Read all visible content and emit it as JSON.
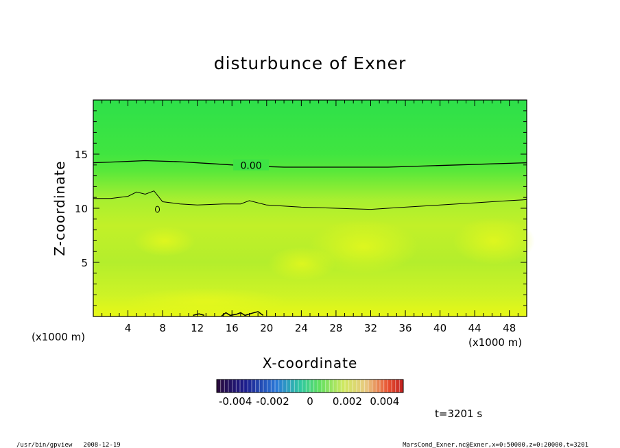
{
  "chart_data": {
    "type": "heatmap",
    "title": "disturbunce of Exner",
    "xlabel": "X-coordinate",
    "ylabel": "Z-coordinate",
    "x_unit_left": "(x1000 m)",
    "x_unit_right": "(x1000 m)",
    "xlim": [
      0,
      50
    ],
    "ylim": [
      0,
      20
    ],
    "x_ticks": [
      4,
      8,
      12,
      16,
      20,
      24,
      28,
      32,
      36,
      40,
      44,
      48
    ],
    "y_ticks": [
      5,
      10,
      15
    ],
    "colorbar": {
      "ticks": [
        "-0.004",
        "-0.002",
        "0",
        "0.002",
        "0.004"
      ],
      "range": [
        -0.005,
        0.005
      ]
    },
    "contours": [
      {
        "level_label": "0.00",
        "x": [
          0,
          3,
          6,
          10,
          14,
          18,
          22,
          26,
          30,
          34,
          38,
          42,
          46,
          50
        ],
        "z": [
          14.2,
          14.3,
          14.4,
          14.3,
          14.1,
          13.9,
          13.8,
          13.8,
          13.8,
          13.8,
          13.9,
          14.0,
          14.1,
          14.2
        ]
      },
      {
        "level_label": "",
        "x": [
          0,
          2,
          4,
          5,
          6,
          7,
          8,
          10,
          12,
          15,
          17,
          18,
          20,
          24,
          28,
          32,
          36,
          40,
          44,
          48,
          50
        ],
        "z": [
          10.9,
          10.9,
          11.1,
          11.5,
          11.3,
          11.6,
          10.6,
          10.4,
          10.3,
          10.4,
          10.4,
          10.7,
          10.3,
          10.1,
          10.0,
          9.9,
          10.1,
          10.3,
          10.5,
          10.7,
          10.8
        ]
      }
    ],
    "small_contour_label": "0",
    "time_label": "t=3201 s"
  },
  "footer": {
    "left": "/usr/bin/gpview   2008-12-19",
    "right": "MarsCond_Exner.nc@Exner,x=0:50000,z=0:20000,t=3201"
  }
}
